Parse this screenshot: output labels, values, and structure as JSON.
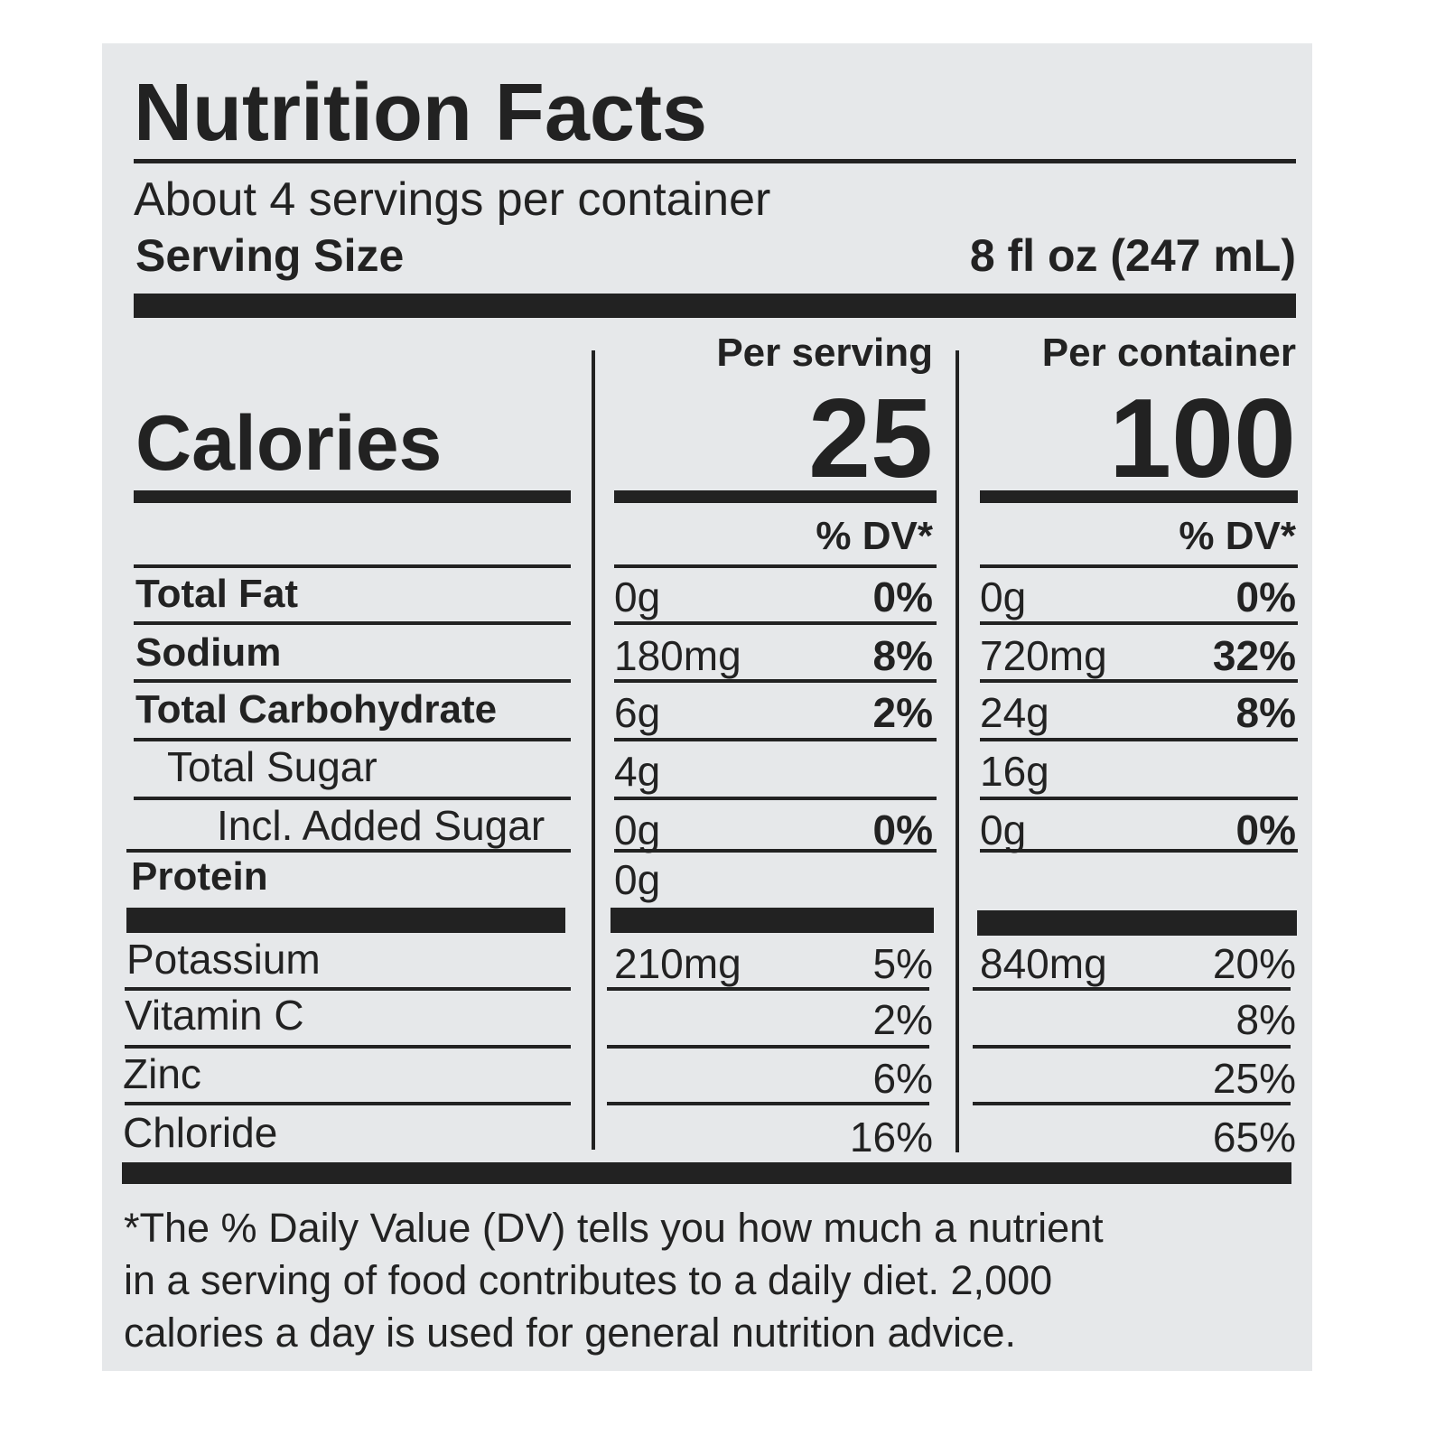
{
  "title": "Nutrition Facts",
  "servings": "About 4 servings per container",
  "serving_size": {
    "label": "Serving Size",
    "value": "8 fl oz (247 mL)"
  },
  "calories_label": "Calories",
  "columns": [
    {
      "header": "Per serving",
      "calories": "25",
      "dv_header": "% DV*"
    },
    {
      "header": "Per container",
      "calories": "100",
      "dv_header": "% DV*"
    }
  ],
  "nutrients": [
    {
      "name": "Total Fat",
      "values": [
        {
          "amount": "0g",
          "dv": "0%"
        },
        {
          "amount": "0g",
          "dv": "0%"
        }
      ]
    },
    {
      "name": "Sodium",
      "values": [
        {
          "amount": "180mg",
          "dv": "8%"
        },
        {
          "amount": "720mg",
          "dv": "32%"
        }
      ]
    },
    {
      "name": "Total Carbohydrate",
      "values": [
        {
          "amount": "6g",
          "dv": "2%"
        },
        {
          "amount": "24g",
          "dv": "8%"
        }
      ]
    },
    {
      "name": "Total Sugar",
      "values": [
        {
          "amount": "4g"
        },
        {
          "amount": "16g"
        }
      ]
    },
    {
      "name": "Incl. Added Sugar",
      "values": [
        {
          "amount": "0g",
          "dv": "0%"
        },
        {
          "amount": "0g",
          "dv": "0%"
        }
      ]
    },
    {
      "name": "Protein",
      "values": [
        {
          "amount": "0g"
        },
        {}
      ]
    }
  ],
  "minerals": [
    {
      "name": "Potassium",
      "values": [
        {
          "amount": "210mg",
          "dv": "5%"
        },
        {
          "amount": "840mg",
          "dv": "20%"
        }
      ]
    },
    {
      "name": "Vitamin C",
      "values": [
        {
          "dv": "2%"
        },
        {
          "dv": "8%"
        }
      ]
    },
    {
      "name": "Zinc",
      "values": [
        {
          "dv": "6%"
        },
        {
          "dv": "25%"
        }
      ]
    },
    {
      "name": "Chloride",
      "values": [
        {
          "dv": "16%"
        },
        {
          "dv": "65%"
        }
      ]
    }
  ],
  "footnote": [
    "*The % Daily Value (DV) tells you how much a nutrient",
    "in a serving of food contributes to a daily diet. 2,000",
    "calories a day is used for general nutrition advice."
  ]
}
